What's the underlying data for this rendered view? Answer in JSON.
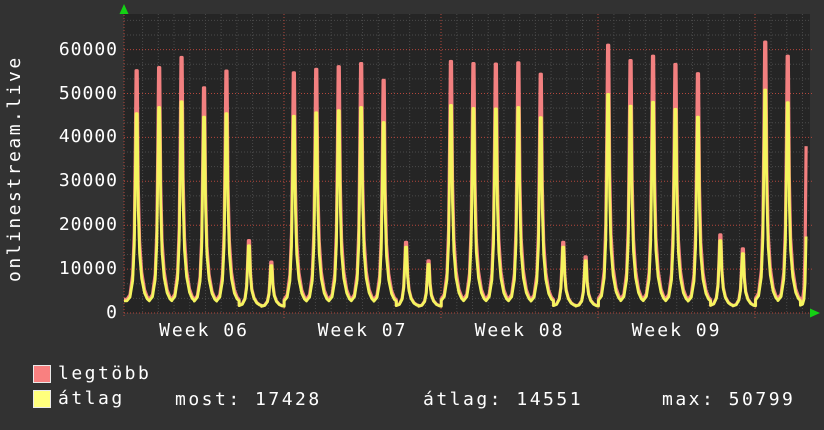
{
  "chart_data": {
    "type": "line",
    "title": "onlinestream.live",
    "ylim": [
      0,
      68000
    ],
    "yticks": [
      0,
      10000,
      20000,
      30000,
      40000,
      50000,
      60000
    ],
    "week_labels": [
      "Week 06",
      "Week 07",
      "Week 08",
      "Week 09"
    ],
    "days_per_week": 7,
    "grid": {
      "minor_color": "#4a4a4a",
      "major_color": "#b4463c",
      "plot_bg": "#252525",
      "outer_bg": "#323232",
      "axis_arrow_color": "#14d114"
    },
    "series": [
      {
        "name": "legtöbb",
        "color": "#f28080",
        "legend_color": "#f98080",
        "daily_peaks": [
          55200,
          55900,
          58200,
          51300,
          55100,
          16500,
          11600,
          54700,
          55500,
          56100,
          56800,
          53000,
          16100,
          11900,
          57300,
          56800,
          56700,
          57000,
          54400,
          16100,
          12800,
          61000,
          57500,
          58500,
          56600,
          54500,
          17800,
          14600,
          61700,
          58500
        ],
        "current_partial_value": 38000
      },
      {
        "name": "átlag",
        "color": "#f4f45e",
        "legend_color": "#ffff7d",
        "daily_peaks": [
          45400,
          46800,
          48100,
          44600,
          45400,
          15300,
          10800,
          44800,
          45600,
          46100,
          46800,
          43400,
          15000,
          11100,
          47300,
          46600,
          46500,
          46800,
          44500,
          15000,
          11900,
          49800,
          47100,
          48000,
          46400,
          44600,
          16500,
          13500,
          50799,
          47900
        ],
        "current_partial_value": 17428
      }
    ]
  },
  "footer": {
    "most_text": "most: 17428",
    "atlag_text": "átlag: 14551",
    "max_text": "max: 50799"
  }
}
